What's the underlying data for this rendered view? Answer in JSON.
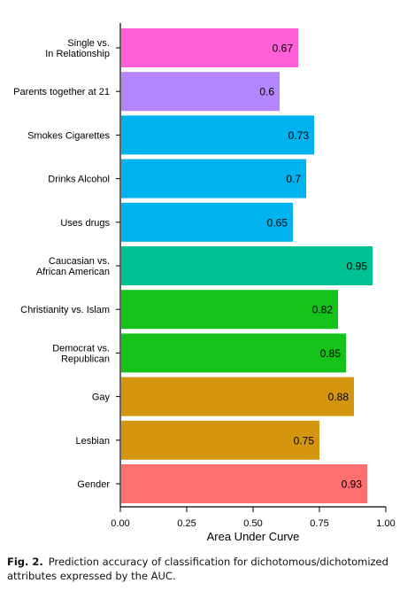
{
  "chart_data": {
    "type": "bar",
    "orientation": "horizontal",
    "categories": [
      [
        "Single vs.",
        "In Relationship"
      ],
      [
        "Parents together at 21"
      ],
      [
        "Smokes Cigarettes"
      ],
      [
        "Drinks Alcohol"
      ],
      [
        "Uses drugs"
      ],
      [
        "Caucasian vs.",
        "African American"
      ],
      [
        "Christianity vs. Islam"
      ],
      [
        "Democrat vs.",
        "Republican"
      ],
      [
        "Gay"
      ],
      [
        "Lesbian"
      ],
      [
        "Gender"
      ]
    ],
    "values": [
      0.67,
      0.6,
      0.73,
      0.7,
      0.65,
      0.95,
      0.82,
      0.85,
      0.88,
      0.75,
      0.93
    ],
    "value_labels": [
      "0.67",
      "0.6",
      "0.73",
      "0.7",
      "0.65",
      "0.95",
      "0.82",
      "0.85",
      "0.88",
      "0.75",
      "0.93"
    ],
    "colors": [
      "#ff5fd9",
      "#b385ff",
      "#00b2ee",
      "#00b2ee",
      "#00b2ee",
      "#00c191",
      "#14c21a",
      "#14c21a",
      "#d4960f",
      "#d4960f",
      "#ff6f6f"
    ],
    "xlabel": "Area Under Curve",
    "xlim": [
      0,
      1
    ],
    "xticks": [
      "0.00",
      "0.25",
      "0.50",
      "0.75",
      "1.00"
    ],
    "grid": false,
    "legend": "none"
  },
  "caption": {
    "label": "Fig. 2.",
    "text": "Prediction accuracy of classification for dichotomous/dichotomized attributes expressed by the AUC."
  }
}
